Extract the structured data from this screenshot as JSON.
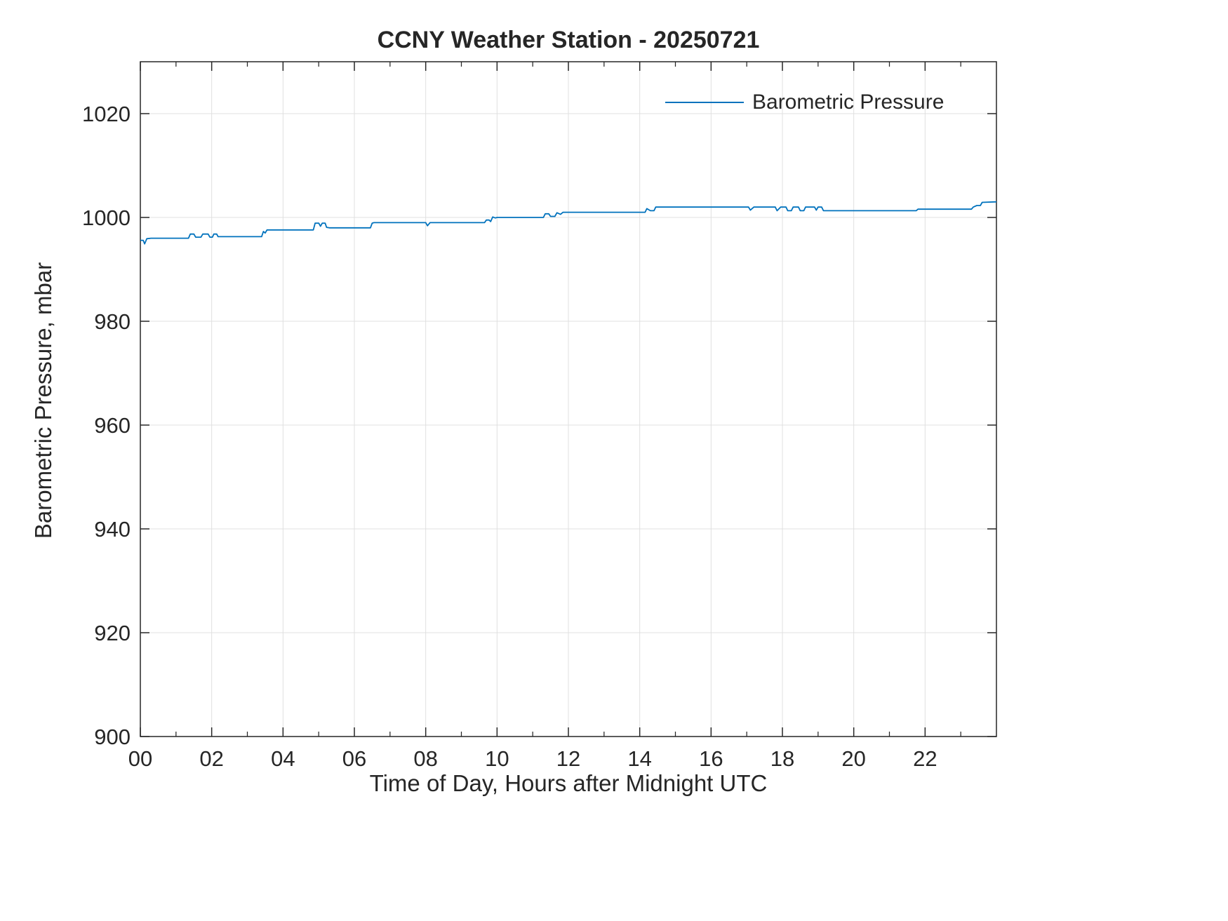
{
  "chart_data": {
    "type": "line",
    "title": "CCNY Weather Station - 20250721",
    "xlabel": "Time of Day, Hours after Midnight UTC",
    "ylabel": "Barometric Pressure, mbar",
    "xlim": [
      0,
      24
    ],
    "ylim": [
      900,
      1030
    ],
    "xticks": [
      0,
      2,
      4,
      6,
      8,
      10,
      12,
      14,
      16,
      18,
      20,
      22
    ],
    "xtick_labels": [
      "00",
      "02",
      "04",
      "06",
      "08",
      "10",
      "12",
      "14",
      "16",
      "18",
      "20",
      "22"
    ],
    "x_minor_ticks": [
      1,
      3,
      5,
      7,
      9,
      11,
      13,
      15,
      17,
      19,
      21,
      23
    ],
    "yticks": [
      900,
      920,
      940,
      960,
      980,
      1000,
      1020
    ],
    "ytick_labels": [
      "900",
      "920",
      "940",
      "960",
      "980",
      "1000",
      "1020"
    ],
    "grid": true,
    "grid_color": "#e0e0e0",
    "axis_color": "#262626",
    "legend": {
      "position": "top-right-inside",
      "label": "Barometric Pressure",
      "line_color": "#0072BD"
    },
    "series": [
      {
        "name": "Barometric Pressure",
        "color": "#0072BD",
        "x": [
          0.0,
          0.08,
          0.12,
          0.18,
          0.3,
          1.35,
          1.4,
          1.5,
          1.55,
          1.7,
          1.75,
          1.9,
          1.95,
          2.02,
          2.06,
          2.14,
          2.18,
          3.4,
          3.45,
          3.5,
          3.55,
          4.85,
          4.9,
          5.0,
          5.05,
          5.1,
          5.18,
          5.22,
          5.3,
          6.45,
          6.5,
          6.55,
          8.0,
          8.05,
          8.12,
          9.65,
          9.7,
          9.78,
          9.82,
          9.88,
          9.95,
          10.0,
          11.3,
          11.35,
          11.45,
          11.5,
          11.62,
          11.68,
          11.78,
          11.85,
          14.15,
          14.2,
          14.3,
          14.4,
          14.45,
          17.05,
          17.1,
          17.2,
          17.8,
          17.85,
          17.95,
          18.1,
          18.15,
          18.25,
          18.3,
          18.45,
          18.5,
          18.6,
          18.65,
          18.9,
          18.95,
          19.0,
          19.1,
          19.15,
          21.75,
          21.8,
          23.3,
          23.35,
          23.45,
          23.55,
          23.6,
          23.95,
          24.0
        ],
        "y": [
          995.6,
          995.6,
          994.9,
          995.9,
          996.0,
          996.0,
          996.8,
          996.8,
          996.2,
          996.2,
          996.8,
          996.8,
          996.2,
          996.2,
          996.8,
          996.8,
          996.3,
          996.3,
          997.3,
          997.0,
          997.6,
          997.6,
          998.9,
          998.9,
          998.3,
          998.9,
          998.9,
          998.1,
          998.0,
          998.0,
          998.9,
          999.0,
          999.0,
          998.4,
          999.0,
          999.0,
          999.5,
          999.5,
          999.2,
          1000.1,
          999.9,
          1000.0,
          1000.0,
          1000.7,
          1000.7,
          1000.2,
          1000.2,
          1000.9,
          1000.6,
          1001.0,
          1001.0,
          1001.7,
          1001.3,
          1001.3,
          1002.0,
          1002.0,
          1001.4,
          1002.0,
          1002.0,
          1001.3,
          1002.0,
          1002.0,
          1001.3,
          1001.3,
          1002.0,
          1002.0,
          1001.3,
          1001.3,
          1002.0,
          1002.0,
          1001.4,
          1002.0,
          1002.0,
          1001.3,
          1001.3,
          1001.6,
          1001.6,
          1002.0,
          1002.3,
          1002.3,
          1002.9,
          1003.0,
          1003.0
        ]
      }
    ]
  }
}
